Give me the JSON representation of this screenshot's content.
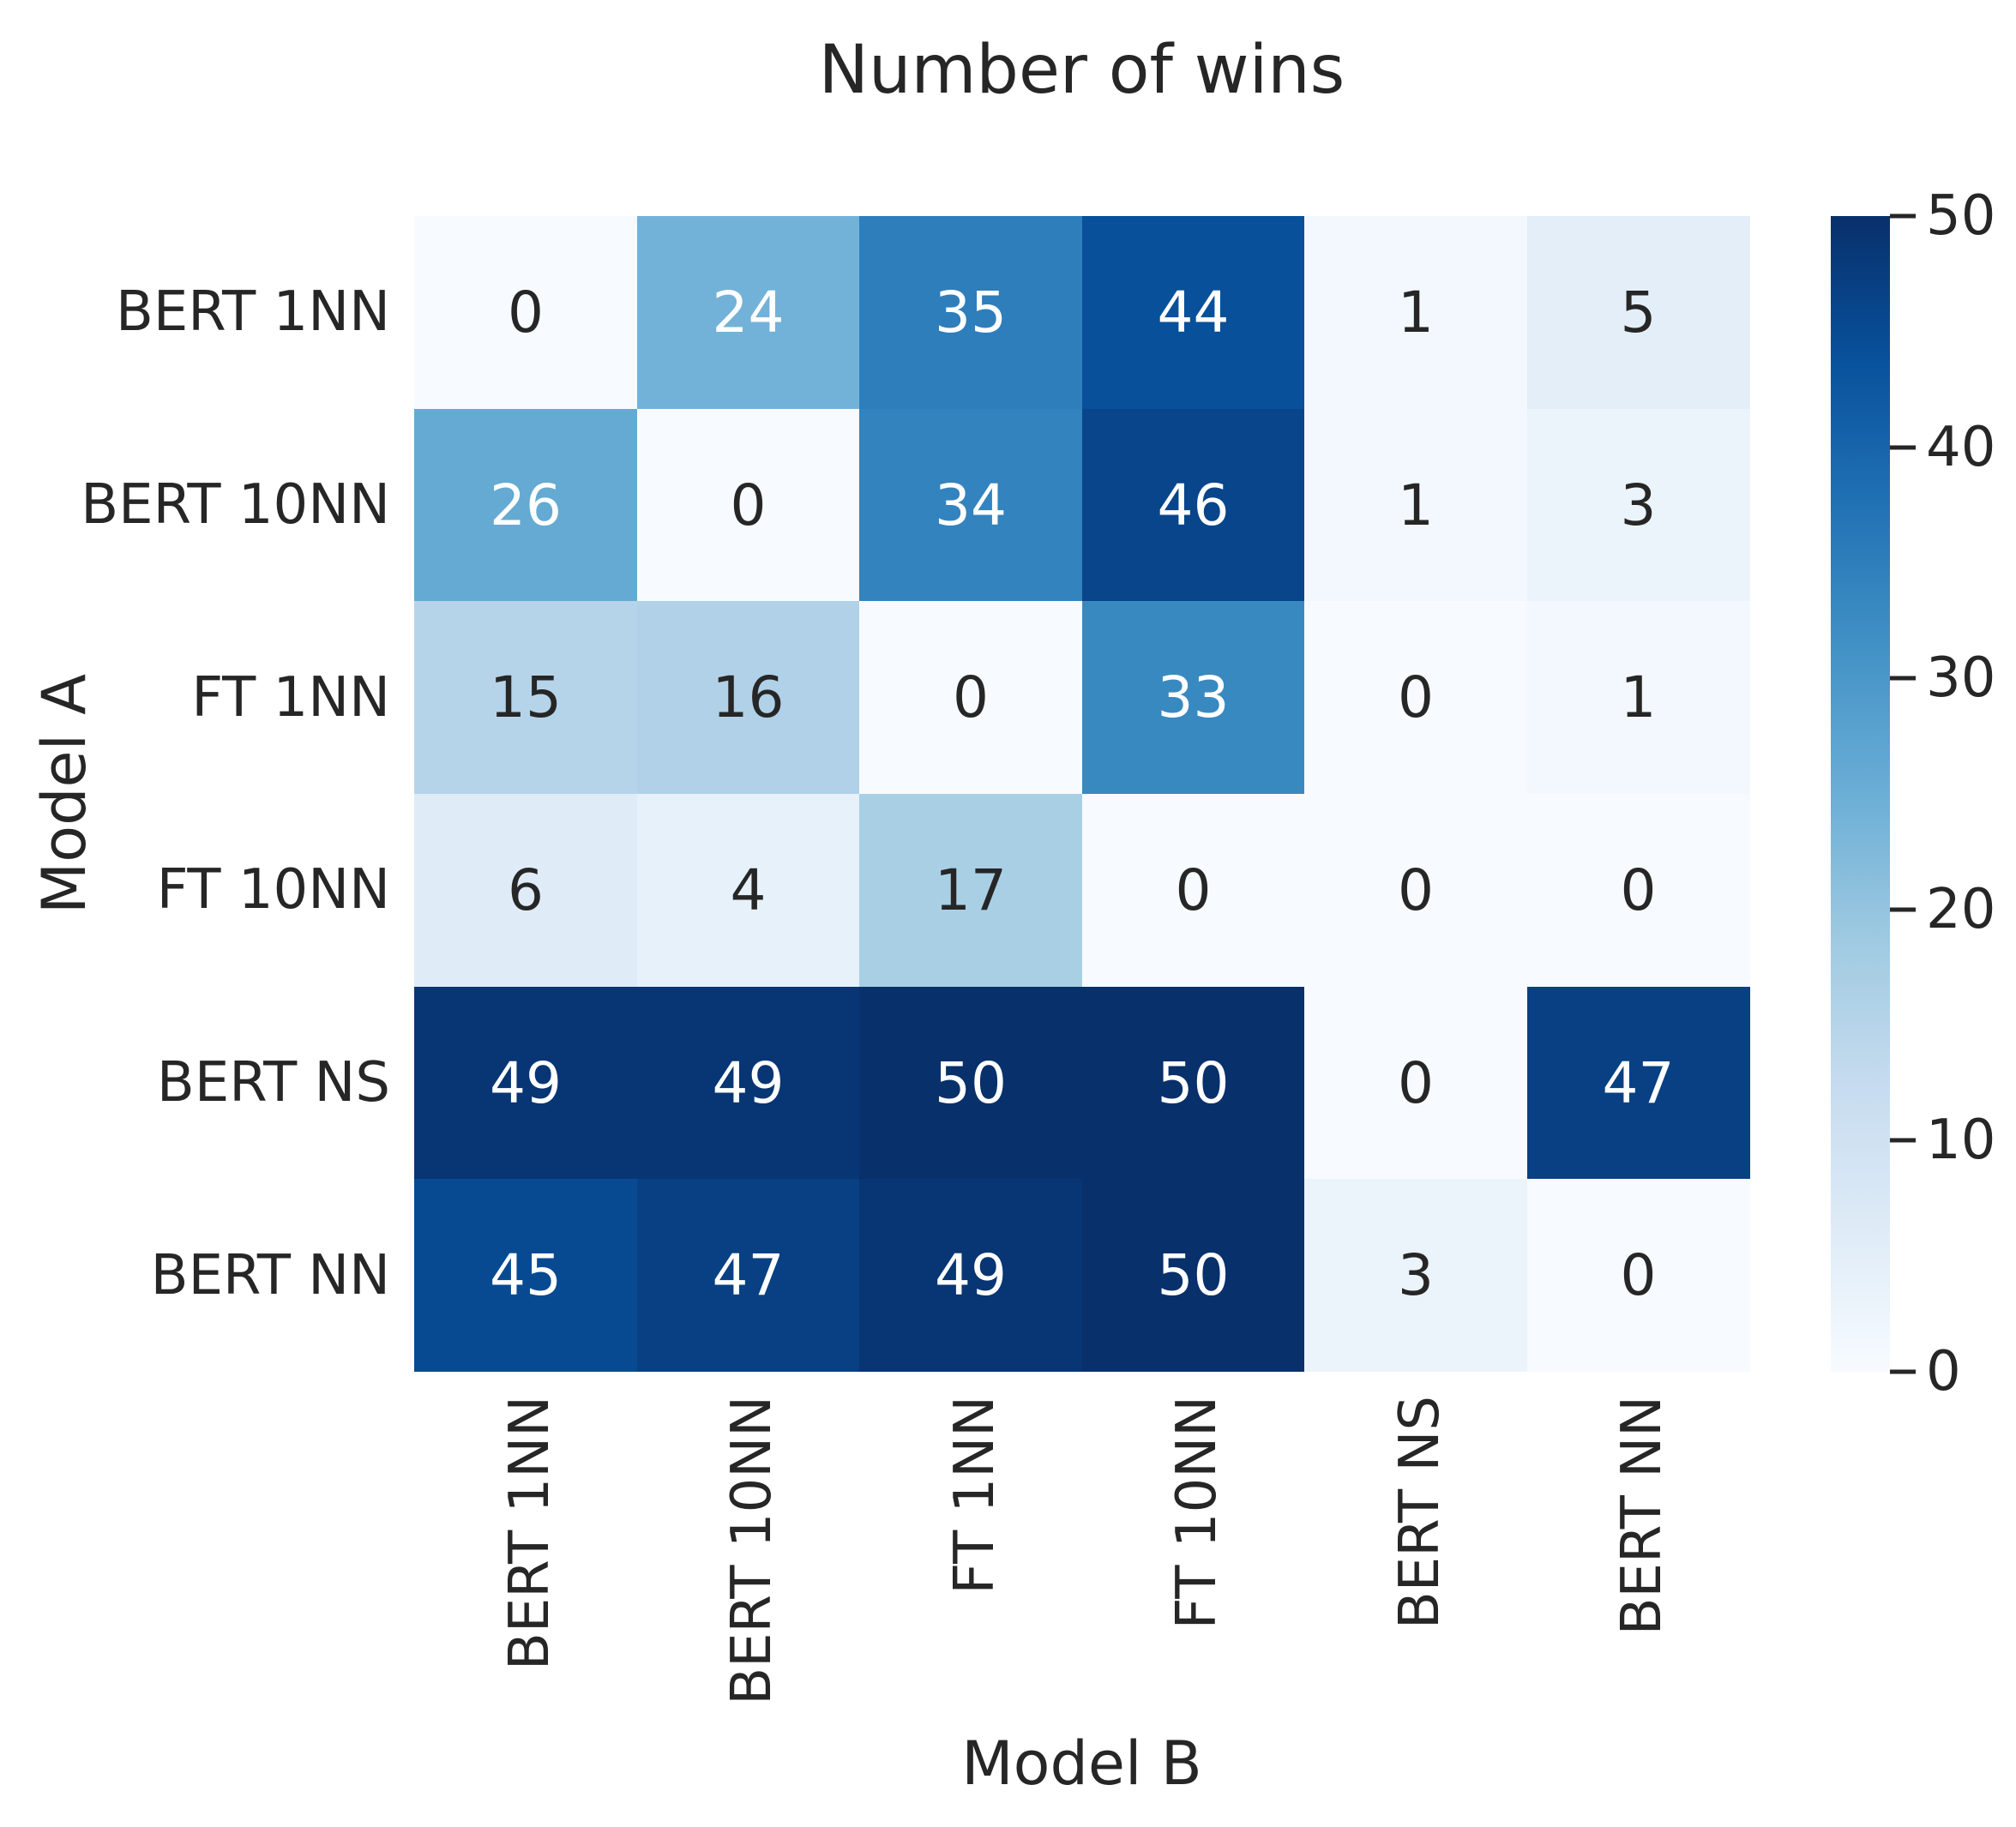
{
  "title": "Number of wins",
  "chart_data": {
    "type": "heatmap",
    "title": "Number of wins",
    "xlabel": "Model B",
    "ylabel": "Model A",
    "x_categories": [
      "BERT 1NN",
      "BERT 10NN",
      "FT 1NN",
      "FT 10NN",
      "BERT NS",
      "BERT NN"
    ],
    "y_categories": [
      "BERT 1NN",
      "BERT 10NN",
      "FT 1NN",
      "FT 10NN",
      "BERT NS",
      "BERT NN"
    ],
    "values": [
      [
        0,
        24,
        35,
        44,
        1,
        5
      ],
      [
        26,
        0,
        34,
        46,
        1,
        3
      ],
      [
        15,
        16,
        0,
        33,
        0,
        1
      ],
      [
        6,
        4,
        17,
        0,
        0,
        0
      ],
      [
        49,
        49,
        50,
        50,
        0,
        47
      ],
      [
        45,
        47,
        49,
        50,
        3,
        0
      ]
    ],
    "annotated": true,
    "colormap": "Blues",
    "vmin": 0,
    "vmax": 50,
    "colorbar_ticks": [
      50,
      40,
      30,
      20,
      10,
      0
    ],
    "legend_position": "right-colorbar",
    "grid": false
  },
  "colors": {
    "background": "#ffffff",
    "text": "#262626",
    "annotation_dark": "#262626",
    "annotation_light": "#ffffff",
    "cmap_stops": [
      "#f7fbff",
      "#deebf7",
      "#c6dbef",
      "#9ecae1",
      "#6baed6",
      "#4292c6",
      "#2171b5",
      "#08519c",
      "#08306b"
    ]
  }
}
